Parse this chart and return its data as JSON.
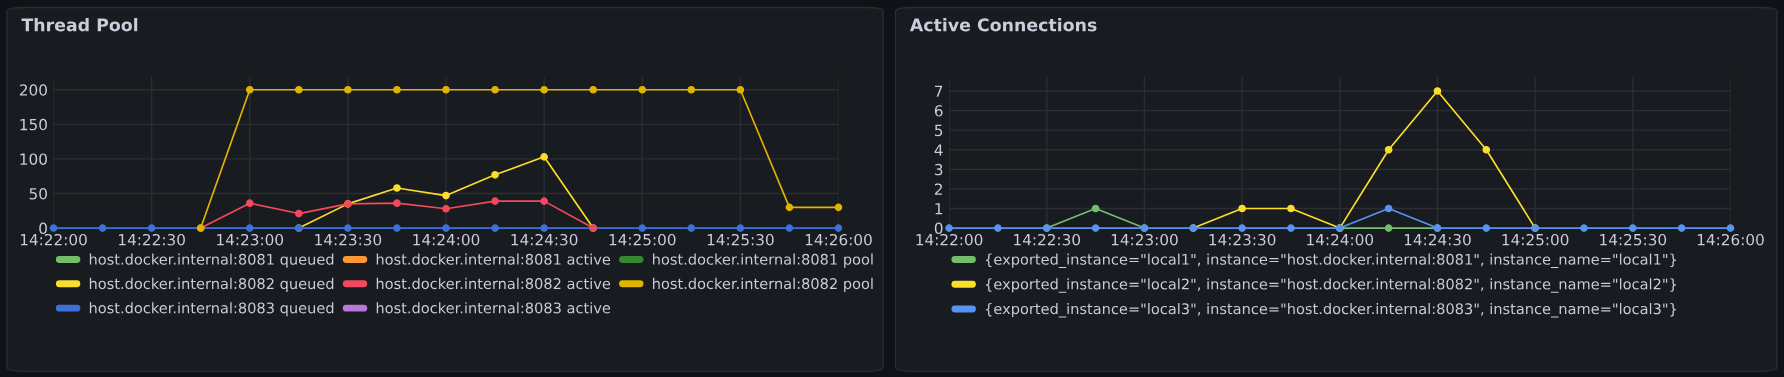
{
  "chart_data": [
    {
      "type": "line",
      "title": "Thread Pool",
      "categories": [
        "14:22:00",
        null,
        "14:22:30",
        null,
        "14:23:00",
        null,
        "14:23:30",
        null,
        "14:24:00",
        null,
        "14:24:30",
        null,
        "14:25:00",
        null,
        "14:25:30",
        null,
        "14:26:00"
      ],
      "series": [
        {
          "name": "host.docker.internal:8081 queued",
          "color": "#73bf69",
          "values": [
            null,
            null,
            null,
            null,
            null,
            null,
            null,
            null,
            null,
            null,
            null,
            null,
            null,
            null,
            null,
            null,
            null
          ]
        },
        {
          "name": "host.docker.internal:8082 queued",
          "color": "#fade2a",
          "values": [
            null,
            null,
            null,
            null,
            null,
            0,
            35,
            58,
            47,
            77,
            103,
            0,
            null,
            null,
            null,
            null,
            null
          ]
        },
        {
          "name": "host.docker.internal:8083 queued",
          "color": "#3d71d9",
          "values": [
            0,
            0,
            0,
            0,
            0,
            0,
            0,
            0,
            0,
            0,
            0,
            0,
            0,
            0,
            0,
            0,
            0
          ]
        },
        {
          "name": "host.docker.internal:8081 active",
          "color": "#ff9830",
          "values": [
            null,
            null,
            null,
            null,
            null,
            null,
            null,
            null,
            null,
            null,
            null,
            null,
            null,
            null,
            null,
            null,
            null
          ]
        },
        {
          "name": "host.docker.internal:8082 active",
          "color": "#f2495c",
          "values": [
            null,
            null,
            null,
            0,
            36,
            21,
            35,
            36,
            28,
            39,
            39,
            0,
            null,
            null,
            null,
            null,
            null
          ]
        },
        {
          "name": "host.docker.internal:8083 active",
          "color": "#b877d9",
          "values": [
            null,
            null,
            null,
            null,
            null,
            null,
            null,
            null,
            null,
            null,
            null,
            null,
            null,
            null,
            null,
            null,
            null
          ]
        },
        {
          "name": "host.docker.internal:8081 pool",
          "color": "#37872d",
          "values": [
            null,
            null,
            null,
            null,
            null,
            null,
            null,
            null,
            null,
            null,
            null,
            null,
            null,
            null,
            null,
            null,
            null
          ]
        },
        {
          "name": "host.docker.internal:8082 pool",
          "color": "#e0b400",
          "values": [
            null,
            null,
            null,
            0,
            200,
            200,
            200,
            200,
            200,
            200,
            200,
            200,
            200,
            200,
            200,
            30,
            30
          ]
        }
      ],
      "ylim": [
        0,
        218
      ],
      "yticks": [
        0,
        50,
        100,
        150,
        200
      ],
      "grid": true,
      "legend": "bottom",
      "marker": "circle",
      "line_style": "solid"
    },
    {
      "type": "line",
      "title": "Active Connections",
      "categories": [
        "14:22:00",
        null,
        "14:22:30",
        null,
        "14:23:00",
        null,
        "14:23:30",
        null,
        "14:24:00",
        null,
        "14:24:30",
        null,
        "14:25:00",
        null,
        "14:25:30",
        null,
        "14:26:00"
      ],
      "series": [
        {
          "name": "{exported_instance=\"local1\", instance=\"host.docker.internal:8081\", instance_name=\"local1\"}",
          "color": "#73bf69",
          "values": [
            null,
            null,
            0,
            1,
            0,
            null,
            null,
            null,
            0,
            0,
            0,
            null,
            null,
            null,
            null,
            null,
            null
          ]
        },
        {
          "name": "{exported_instance=\"local2\", instance=\"host.docker.internal:8082\", instance_name=\"local2\"}",
          "color": "#fade2a",
          "values": [
            null,
            null,
            null,
            null,
            null,
            0,
            1,
            1,
            0,
            4,
            7,
            4,
            0,
            null,
            null,
            null,
            null
          ]
        },
        {
          "name": "{exported_instance=\"local3\", instance=\"host.docker.internal:8083\", instance_name=\"local3\"}",
          "color": "#5794f2",
          "values": [
            0,
            0,
            0,
            0,
            0,
            0,
            0,
            0,
            0,
            1,
            0,
            0,
            0,
            0,
            0,
            0,
            0
          ]
        }
      ],
      "ylim": [
        0,
        7.7
      ],
      "yticks": [
        0,
        1,
        2,
        3,
        4,
        5,
        6,
        7
      ],
      "grid": true,
      "legend": "bottom",
      "marker": "circle",
      "line_style": "solid"
    }
  ]
}
